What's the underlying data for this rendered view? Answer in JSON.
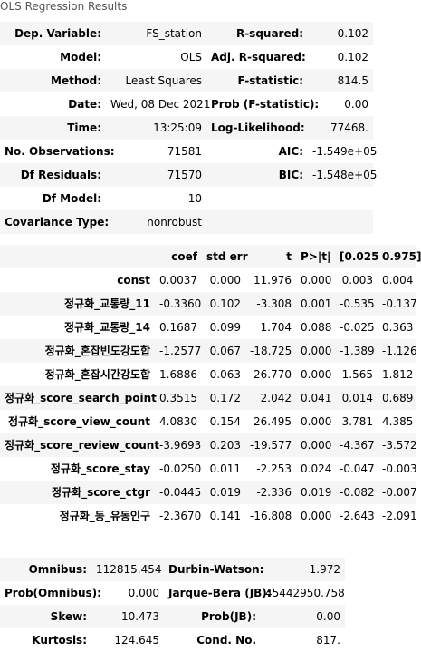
{
  "caption": "OLS Regression Results",
  "summary": {
    "rows": [
      {
        "l1": "Dep. Variable:",
        "v1": "FS_station",
        "l2": "R-squared:",
        "v2": "0.102"
      },
      {
        "l1": "Model:",
        "v1": "OLS",
        "l2": "Adj. R-squared:",
        "v2": "0.102"
      },
      {
        "l1": "Method:",
        "v1": "Least Squares",
        "l2": "F-statistic:",
        "v2": "814.5"
      },
      {
        "l1": "Date:",
        "v1": "Wed, 08 Dec 2021",
        "l2": "Prob (F-statistic):",
        "v2": "0.00"
      },
      {
        "l1": "Time:",
        "v1": "13:25:09",
        "l2": "Log-Likelihood:",
        "v2": "77468."
      },
      {
        "l1": "No. Observations:",
        "v1": "71581",
        "l2": "AIC:",
        "v2": "-1.549e+05"
      },
      {
        "l1": "Df Residuals:",
        "v1": "71570",
        "l2": "BIC:",
        "v2": "-1.548e+05"
      },
      {
        "l1": "Df Model:",
        "v1": "10",
        "l2": "",
        "v2": ""
      },
      {
        "l1": "Covariance Type:",
        "v1": "nonrobust",
        "l2": "",
        "v2": ""
      }
    ]
  },
  "coefficients": {
    "headers": [
      "",
      "coef",
      "std err",
      "t",
      "P>|t|",
      "[0.025",
      "0.975]"
    ],
    "rows": [
      {
        "name": "const",
        "coef": "0.0037",
        "stderr": "0.000",
        "t": "11.976",
        "p": "0.000",
        "lo": "0.003",
        "hi": "0.004"
      },
      {
        "name": "정규화_교통량_11",
        "coef": "-0.3360",
        "stderr": "0.102",
        "t": "-3.308",
        "p": "0.001",
        "lo": "-0.535",
        "hi": "-0.137"
      },
      {
        "name": "정규화_교통량_14",
        "coef": "0.1687",
        "stderr": "0.099",
        "t": "1.704",
        "p": "0.088",
        "lo": "-0.025",
        "hi": "0.363"
      },
      {
        "name": "정규화_혼잡빈도강도합",
        "coef": "-1.2577",
        "stderr": "0.067",
        "t": "-18.725",
        "p": "0.000",
        "lo": "-1.389",
        "hi": "-1.126"
      },
      {
        "name": "정규화_혼잡시간강도합",
        "coef": "1.6886",
        "stderr": "0.063",
        "t": "26.770",
        "p": "0.000",
        "lo": "1.565",
        "hi": "1.812"
      },
      {
        "name": "정규화_score_search_point",
        "coef": "0.3515",
        "stderr": "0.172",
        "t": "2.042",
        "p": "0.041",
        "lo": "0.014",
        "hi": "0.689"
      },
      {
        "name": "정규화_score_view_count",
        "coef": "4.0830",
        "stderr": "0.154",
        "t": "26.495",
        "p": "0.000",
        "lo": "3.781",
        "hi": "4.385"
      },
      {
        "name": "정규화_score_review_count",
        "coef": "-3.9693",
        "stderr": "0.203",
        "t": "-19.577",
        "p": "0.000",
        "lo": "-4.367",
        "hi": "-3.572"
      },
      {
        "name": "정규화_score_stay",
        "coef": "-0.0250",
        "stderr": "0.011",
        "t": "-2.253",
        "p": "0.024",
        "lo": "-0.047",
        "hi": "-0.003"
      },
      {
        "name": "정규화_score_ctgr",
        "coef": "-0.0445",
        "stderr": "0.019",
        "t": "-2.336",
        "p": "0.019",
        "lo": "-0.082",
        "hi": "-0.007"
      },
      {
        "name": "정규화_동_유동인구",
        "coef": "-2.3670",
        "stderr": "0.141",
        "t": "-16.808",
        "p": "0.000",
        "lo": "-2.643",
        "hi": "-2.091"
      }
    ]
  },
  "diagnostics": {
    "rows": [
      {
        "l1": "Omnibus:",
        "v1": "112815.454",
        "l2": "Durbin-Watson:",
        "v2": "1.972"
      },
      {
        "l1": "Prob(Omnibus):",
        "v1": "0.000",
        "l2": "Jarque-Bera (JB):",
        "v2": "45442950.758"
      },
      {
        "l1": "Skew:",
        "v1": "10.473",
        "l2": "Prob(JB):",
        "v2": "0.00"
      },
      {
        "l1": "Kurtosis:",
        "v1": "124.645",
        "l2": "Cond. No.",
        "v2": "817."
      }
    ]
  }
}
